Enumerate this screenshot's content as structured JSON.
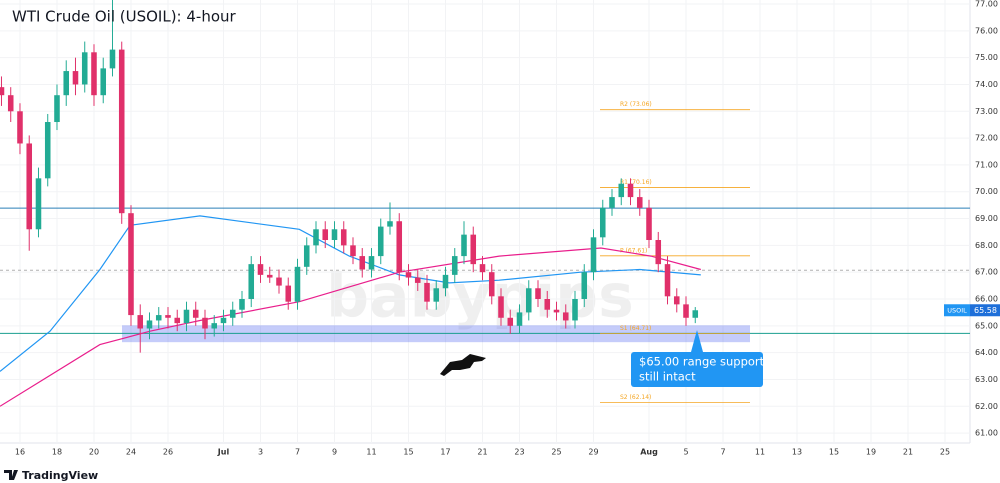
{
  "chart_data": {
    "type": "candlestick",
    "title": "WTI Crude Oil (USOIL): 4-hour",
    "symbol": "USOIL",
    "last_price": 65.58,
    "up_color": "#22ab94",
    "down_color": "#e0306a",
    "x": [
      -1,
      -0.5,
      0,
      0.5,
      1,
      1.5,
      2,
      2.5,
      3,
      3.5,
      4,
      4.5,
      5,
      5.5,
      6,
      6.5,
      7,
      7.5,
      8,
      8.5,
      9,
      9.5,
      10,
      10.5,
      11,
      11.5,
      12,
      12.5,
      13,
      13.5,
      14,
      14.5,
      15,
      15.5,
      16,
      16.5,
      17,
      17.5,
      18,
      18.5,
      19,
      19.5,
      20,
      20.5,
      21,
      21.5,
      22,
      22.5,
      23,
      23.5,
      24,
      24.5,
      25,
      25.5,
      26,
      26.5,
      27,
      27.5,
      28,
      28.5,
      29,
      29.5,
      30,
      30.5,
      31,
      31.5,
      32,
      32.5,
      33,
      33.5,
      34,
      34.5,
      35,
      35.5,
      36,
      36.5
    ],
    "ohlc": [
      [
        73.9,
        74.3,
        73.2,
        73.6
      ],
      [
        73.6,
        73.9,
        72.6,
        73.0
      ],
      [
        73.0,
        73.3,
        71.4,
        71.8
      ],
      [
        71.8,
        72.1,
        67.8,
        68.6
      ],
      [
        68.6,
        70.9,
        68.3,
        70.5
      ],
      [
        70.5,
        72.9,
        70.2,
        72.6
      ],
      [
        72.6,
        74.0,
        72.3,
        73.6
      ],
      [
        73.6,
        74.9,
        73.2,
        74.5
      ],
      [
        74.5,
        75.0,
        73.6,
        74.0
      ],
      [
        74.0,
        75.6,
        73.7,
        75.2
      ],
      [
        75.2,
        75.5,
        73.2,
        73.6
      ],
      [
        73.6,
        75.0,
        73.3,
        74.6
      ],
      [
        74.6,
        77.2,
        74.3,
        75.3
      ],
      [
        75.3,
        75.6,
        68.8,
        69.2
      ],
      [
        69.2,
        69.5,
        65.0,
        65.4
      ],
      [
        65.4,
        65.8,
        64.0,
        64.9
      ],
      [
        64.9,
        65.5,
        64.5,
        65.2
      ],
      [
        65.2,
        65.7,
        64.9,
        65.4
      ],
      [
        65.4,
        65.7,
        64.9,
        65.3
      ],
      [
        65.3,
        65.6,
        64.8,
        65.1
      ],
      [
        65.1,
        65.9,
        64.8,
        65.6
      ],
      [
        65.6,
        65.9,
        65.0,
        65.3
      ],
      [
        65.3,
        65.6,
        64.5,
        64.9
      ],
      [
        64.9,
        65.4,
        64.6,
        65.1
      ],
      [
        65.1,
        65.6,
        64.8,
        65.3
      ],
      [
        65.3,
        65.9,
        65.0,
        65.6
      ],
      [
        65.6,
        66.3,
        65.3,
        66.0
      ],
      [
        66.0,
        67.6,
        65.7,
        67.3
      ],
      [
        67.3,
        67.6,
        66.6,
        66.9
      ],
      [
        66.9,
        67.2,
        66.6,
        66.8
      ],
      [
        66.8,
        67.1,
        66.2,
        66.5
      ],
      [
        66.5,
        66.8,
        65.6,
        65.9
      ],
      [
        65.9,
        67.5,
        65.6,
        67.2
      ],
      [
        67.2,
        68.3,
        66.9,
        68.0
      ],
      [
        68.0,
        68.9,
        67.7,
        68.6
      ],
      [
        68.6,
        68.9,
        67.9,
        68.2
      ],
      [
        68.2,
        68.9,
        67.9,
        68.6
      ],
      [
        68.6,
        68.9,
        67.7,
        68.0
      ],
      [
        68.0,
        68.3,
        67.3,
        67.6
      ],
      [
        67.6,
        67.9,
        66.8,
        67.1
      ],
      [
        67.1,
        67.9,
        66.8,
        67.6
      ],
      [
        67.6,
        69.0,
        67.3,
        68.7
      ],
      [
        68.7,
        69.6,
        68.4,
        68.9
      ],
      [
        68.9,
        69.2,
        66.7,
        67.0
      ],
      [
        67.0,
        67.3,
        66.5,
        66.8
      ],
      [
        66.8,
        67.1,
        66.3,
        66.6
      ],
      [
        66.6,
        66.9,
        65.6,
        65.9
      ],
      [
        65.9,
        66.7,
        65.6,
        66.4
      ],
      [
        66.4,
        67.2,
        66.1,
        66.9
      ],
      [
        66.9,
        67.9,
        66.6,
        67.6
      ],
      [
        67.6,
        68.9,
        67.3,
        68.4
      ],
      [
        68.4,
        68.7,
        67.0,
        67.3
      ],
      [
        67.3,
        67.6,
        66.7,
        67.0
      ],
      [
        67.0,
        67.3,
        65.8,
        66.1
      ],
      [
        66.1,
        66.4,
        65.0,
        65.3
      ],
      [
        65.3,
        65.6,
        64.7,
        65.0
      ],
      [
        65.0,
        65.8,
        64.7,
        65.5
      ],
      [
        65.5,
        66.7,
        65.2,
        66.4
      ],
      [
        66.4,
        66.7,
        65.7,
        66.0
      ],
      [
        66.0,
        66.3,
        65.3,
        65.6
      ],
      [
        65.6,
        65.9,
        65.2,
        65.5
      ],
      [
        65.5,
        65.8,
        64.9,
        65.2
      ],
      [
        65.2,
        66.3,
        64.9,
        66.0
      ],
      [
        66.0,
        67.3,
        65.7,
        67.0
      ],
      [
        67.0,
        68.6,
        66.7,
        68.3
      ],
      [
        68.3,
        69.7,
        68.0,
        69.4
      ],
      [
        69.4,
        70.1,
        69.1,
        69.8
      ],
      [
        69.8,
        70.5,
        69.5,
        70.3
      ],
      [
        70.3,
        70.5,
        69.5,
        69.8
      ],
      [
        69.8,
        70.1,
        69.1,
        69.4
      ],
      [
        69.4,
        69.7,
        67.9,
        68.2
      ],
      [
        68.2,
        68.5,
        67.0,
        67.3
      ],
      [
        67.3,
        67.6,
        65.8,
        66.1
      ],
      [
        66.1,
        66.4,
        65.5,
        65.8
      ],
      [
        65.8,
        66.1,
        65.0,
        65.3
      ],
      [
        65.3,
        65.7,
        65.1,
        65.58
      ]
    ],
    "lines": [
      {
        "color": "#2196f3",
        "x": [
          -1.08,
          1.62,
          4.32,
          5.95,
          9.73,
          13.5,
          15.1,
          17.8,
          20.5,
          23.2,
          25.9,
          30.3,
          33.5,
          36.8
        ],
        "values": [
          63.3,
          64.8,
          67.1,
          68.75,
          69.1,
          68.75,
          68.6,
          67.6,
          66.9,
          66.6,
          66.7,
          67.0,
          67.1,
          66.9
        ]
      },
      {
        "color": "#e91e8c",
        "x": [
          -1.08,
          4.32,
          7.03,
          9.73,
          15.1,
          20.5,
          25.9,
          31.4,
          34.1,
          36.8
        ],
        "values": [
          62.0,
          64.3,
          64.8,
          65.2,
          65.9,
          67.0,
          67.6,
          67.9,
          67.6,
          67.1
        ]
      }
    ],
    "hlines": [
      {
        "value": 69.39,
        "color": "#2a7fb8"
      },
      {
        "value": 64.72,
        "color": "#1a9e8f"
      },
      {
        "value": 67.07,
        "color": "#b0b0b0",
        "dashed": true
      }
    ],
    "zone": {
      "from": 64.39,
      "to": 65.02,
      "color": "rgba(90,110,240,0.35)"
    },
    "pivots": [
      {
        "label": "R2 (73.06)",
        "value": 73.06
      },
      {
        "label": "R1 (70.16)",
        "value": 70.16
      },
      {
        "label": "P (67.61)",
        "value": 67.61
      },
      {
        "label": "S1 (64.71)",
        "value": 64.71
      },
      {
        "label": "S2 (62.14)",
        "value": 62.14
      }
    ],
    "pivot_color": "#f5a623",
    "annotation": [
      "$65.00 range support",
      "still intact"
    ],
    "watermark": "babypips",
    "brand": "TradingView",
    "xlim": [
      -1.08,
      51.35
    ],
    "ylim": [
      60.63,
      77.15
    ],
    "yticks": [
      {
        "value": 61,
        "label": "61.00"
      },
      {
        "value": 62,
        "label": "62.00"
      },
      {
        "value": 63,
        "label": "63.00"
      },
      {
        "value": 64,
        "label": "64.00"
      },
      {
        "value": 65,
        "label": "65.00"
      },
      {
        "value": 66,
        "label": "66.00"
      },
      {
        "value": 67,
        "label": "67.00"
      },
      {
        "value": 68,
        "label": "68.00"
      },
      {
        "value": 69,
        "label": "69.00"
      },
      {
        "value": 70,
        "label": "70.00"
      },
      {
        "value": 71,
        "label": "71.00"
      },
      {
        "value": 72,
        "label": "72.00"
      },
      {
        "value": 73,
        "label": "73.00"
      },
      {
        "value": 74,
        "label": "74.00"
      },
      {
        "value": 75,
        "label": "75.00"
      },
      {
        "value": 76,
        "label": "76.00"
      },
      {
        "value": 77,
        "label": "77.00"
      }
    ],
    "xticks": [
      {
        "value": 0,
        "label": "16"
      },
      {
        "value": 2,
        "label": "18"
      },
      {
        "value": 4,
        "label": "20"
      },
      {
        "value": 6,
        "label": "24"
      },
      {
        "value": 8,
        "label": "26"
      },
      {
        "value": 11,
        "label": "Jul"
      },
      {
        "value": 13,
        "label": "3"
      },
      {
        "value": 15,
        "label": "7"
      },
      {
        "value": 17,
        "label": "9"
      },
      {
        "value": 19,
        "label": "11"
      },
      {
        "value": 21,
        "label": "15"
      },
      {
        "value": 23,
        "label": "17"
      },
      {
        "value": 25,
        "label": "21"
      },
      {
        "value": 27,
        "label": "23"
      },
      {
        "value": 29,
        "label": "25"
      },
      {
        "value": 31,
        "label": "29"
      },
      {
        "value": 34,
        "label": "Aug"
      },
      {
        "value": 36,
        "label": "5"
      },
      {
        "value": 38,
        "label": "7"
      },
      {
        "value": 40,
        "label": "11"
      },
      {
        "value": 42,
        "label": "13"
      },
      {
        "value": 44,
        "label": "15"
      },
      {
        "value": 46,
        "label": "19"
      },
      {
        "value": 48,
        "label": "21"
      },
      {
        "value": 50,
        "label": "25"
      }
    ]
  }
}
